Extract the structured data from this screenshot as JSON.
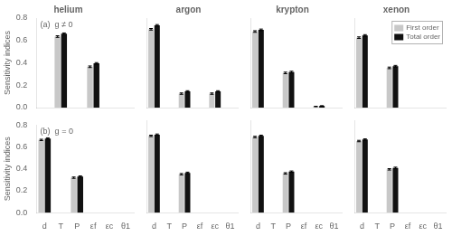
{
  "chart_data": [
    {
      "type": "bar",
      "title": "helium",
      "ylabel": "Sensitivity indices",
      "annotation": "(a)  g ≠ 0",
      "categories": [
        "d",
        "T",
        "P",
        "εf",
        "εc",
        "θ1"
      ],
      "series": [
        {
          "name": "First order",
          "color": "#c8c8c8",
          "values": [
            0.0,
            0.635,
            0.0,
            0.365,
            0.0,
            0.0
          ],
          "errors": [
            0.0,
            0.007,
            0.0,
            0.007,
            0.0,
            0.0
          ]
        },
        {
          "name": "Total order",
          "color": "#111111",
          "values": [
            0.0,
            0.66,
            0.0,
            0.395,
            0.0,
            0.0
          ],
          "errors": [
            0.0,
            0.007,
            0.0,
            0.007,
            0.0,
            0.0
          ]
        }
      ],
      "ylim": [
        0.0,
        0.8
      ],
      "yticks": [
        {
          "value": 0.0,
          "label": "0.0"
        },
        0.2,
        0.4,
        0.6,
        0.8
      ],
      "grid": false,
      "tick_labels": "y"
    },
    {
      "type": "bar",
      "title": "argon",
      "categories": [
        "d",
        "T",
        "P",
        "εf",
        "εc",
        "θ1"
      ],
      "series": [
        {
          "name": "First order",
          "color": "#c8c8c8",
          "values": [
            0.7,
            0.0,
            0.125,
            0.0,
            0.125,
            0.0
          ],
          "errors": [
            0.007,
            0.0,
            0.006,
            0.0,
            0.006,
            0.0
          ]
        },
        {
          "name": "Total order",
          "color": "#111111",
          "values": [
            0.735,
            0.0,
            0.145,
            0.0,
            0.145,
            0.0
          ],
          "errors": [
            0.007,
            0.0,
            0.006,
            0.0,
            0.006,
            0.0
          ]
        }
      ],
      "ylim": [
        0.0,
        0.8
      ],
      "yticks": [
        {
          "value": 0.0,
          "label": "0.0"
        },
        0.2,
        0.4,
        0.6,
        0.8
      ],
      "grid": false,
      "tick_labels": false
    },
    {
      "type": "bar",
      "title": "krypton",
      "categories": [
        "d",
        "T",
        "P",
        "εf",
        "εc",
        "θ1"
      ],
      "series": [
        {
          "name": "First order",
          "color": "#c8c8c8",
          "values": [
            0.68,
            0.0,
            0.31,
            0.0,
            0.01,
            0.0
          ],
          "errors": [
            0.007,
            0.0,
            0.007,
            0.0,
            0.002,
            0.0
          ]
        },
        {
          "name": "Total order",
          "color": "#111111",
          "values": [
            0.695,
            0.0,
            0.318,
            0.0,
            0.015,
            0.0
          ],
          "errors": [
            0.007,
            0.0,
            0.007,
            0.0,
            0.002,
            0.0
          ]
        }
      ],
      "ylim": [
        0.0,
        0.8
      ],
      "yticks": [
        {
          "value": 0.0,
          "label": "0.0"
        },
        0.2,
        0.4,
        0.6,
        0.8
      ],
      "grid": false,
      "tick_labels": false
    },
    {
      "type": "bar",
      "title": "xenon",
      "legend": "upper right",
      "categories": [
        "d",
        "T",
        "P",
        "εf",
        "εc",
        "θ1"
      ],
      "series": [
        {
          "name": "First order",
          "color": "#c8c8c8",
          "values": [
            0.625,
            0.0,
            0.355,
            0.0,
            0.0,
            0.0
          ],
          "errors": [
            0.007,
            0.0,
            0.007,
            0.0,
            0.0,
            0.0
          ]
        },
        {
          "name": "Total order",
          "color": "#111111",
          "values": [
            0.645,
            0.0,
            0.37,
            0.0,
            0.0,
            0.0
          ],
          "errors": [
            0.007,
            0.0,
            0.007,
            0.0,
            0.0,
            0.0
          ]
        }
      ],
      "ylim": [
        0.0,
        0.8
      ],
      "yticks": [
        {
          "value": 0.0,
          "label": "0.0"
        },
        0.2,
        0.4,
        0.6,
        0.8
      ],
      "grid": false,
      "tick_labels": false
    },
    {
      "type": "bar",
      "ylabel": "Sensitivity indices",
      "annotation": "(b)  g = 0",
      "categories": [
        "d",
        "T",
        "P",
        "εf",
        "εc",
        "θ1"
      ],
      "series": [
        {
          "name": "First order",
          "color": "#c8c8c8",
          "values": [
            0.665,
            0.0,
            0.32,
            0.0,
            0.0,
            0.0
          ],
          "errors": [
            0.006,
            0.0,
            0.006,
            0.0,
            0.0,
            0.0
          ]
        },
        {
          "name": "Total order",
          "color": "#111111",
          "values": [
            0.678,
            0.0,
            0.33,
            0.0,
            0.0,
            0.0
          ],
          "errors": [
            0.006,
            0.0,
            0.006,
            0.0,
            0.0,
            0.0
          ]
        }
      ],
      "ylim": [
        0.0,
        0.8
      ],
      "yticks": [
        {
          "value": 0.0,
          "label": "0.0"
        },
        0.2,
        0.4,
        0.6,
        0.8
      ],
      "grid": false
    },
    {
      "type": "bar",
      "categories": [
        "d",
        "T",
        "P",
        "εf",
        "εc",
        "θ1"
      ],
      "series": [
        {
          "name": "First order",
          "color": "#c8c8c8",
          "values": [
            0.665,
            0.0,
            0.333,
            0.0,
            0.0,
            0.0
          ],
          "errors": [
            0.006,
            0.0,
            0.006,
            0.0,
            0.0,
            0.0
          ]
        },
        {
          "name": "Total order",
          "color": "#111111",
          "values": [
            0.675,
            0.0,
            0.345,
            0.0,
            0.0,
            0.0
          ],
          "errors": [
            0.006,
            0.0,
            0.006,
            0.0,
            0.0,
            0.0
          ]
        }
      ],
      "ylim": [
        0.0,
        0.8
      ],
      "yticks": [
        {
          "value": 0.0,
          "label": "0.0"
        },
        0.2,
        0.4,
        0.6,
        0.8
      ],
      "grid": false,
      "tick_labels": "x"
    },
    {
      "type": "bar",
      "categories": [
        "d",
        "T",
        "P",
        "εf",
        "εc",
        "θ1"
      ],
      "series": [
        {
          "name": "First order",
          "color": "#c8c8c8",
          "values": [
            0.655,
            0.0,
            0.34,
            0.0,
            0.0,
            0.0
          ],
          "errors": [
            0.006,
            0.0,
            0.006,
            0.0,
            0.0,
            0.0
          ]
        },
        {
          "name": "Total order",
          "color": "#111111",
          "values": [
            0.665,
            0.0,
            0.355,
            0.0,
            0.0,
            0.0
          ],
          "errors": [
            0.006,
            0.0,
            0.006,
            0.0,
            0.0,
            0.0
          ]
        }
      ],
      "ylim": [
        0.0,
        0.8
      ],
      "yticks": [
        {
          "value": 0.0,
          "label": "0.0"
        },
        0.2,
        0.4,
        0.6,
        0.8
      ],
      "grid": false,
      "tick_labels": "x"
    },
    {
      "type": "bar",
      "categories": [
        "d",
        "T",
        "P",
        "εf",
        "εc",
        "θ1"
      ],
      "series": [
        {
          "name": "First order",
          "color": "#c8c8c8",
          "values": [
            0.62,
            0.0,
            0.375,
            0.0,
            0.0,
            0.0
          ],
          "errors": [
            0.006,
            0.0,
            0.006,
            0.0,
            0.0,
            0.0
          ]
        },
        {
          "name": "Total order",
          "color": "#111111",
          "values": [
            0.633,
            0.0,
            0.388,
            0.0,
            0.0,
            0.0
          ],
          "errors": [
            0.006,
            0.0,
            0.006,
            0.0,
            0.0,
            0.0
          ]
        }
      ],
      "ylim": [
        0.0,
        0.8
      ],
      "yticks": [
        {
          "value": 0.0,
          "label": "0.0"
        },
        0.2,
        0.4,
        0.6,
        0.8
      ],
      "grid": false,
      "tick_labels": "x"
    }
  ]
}
